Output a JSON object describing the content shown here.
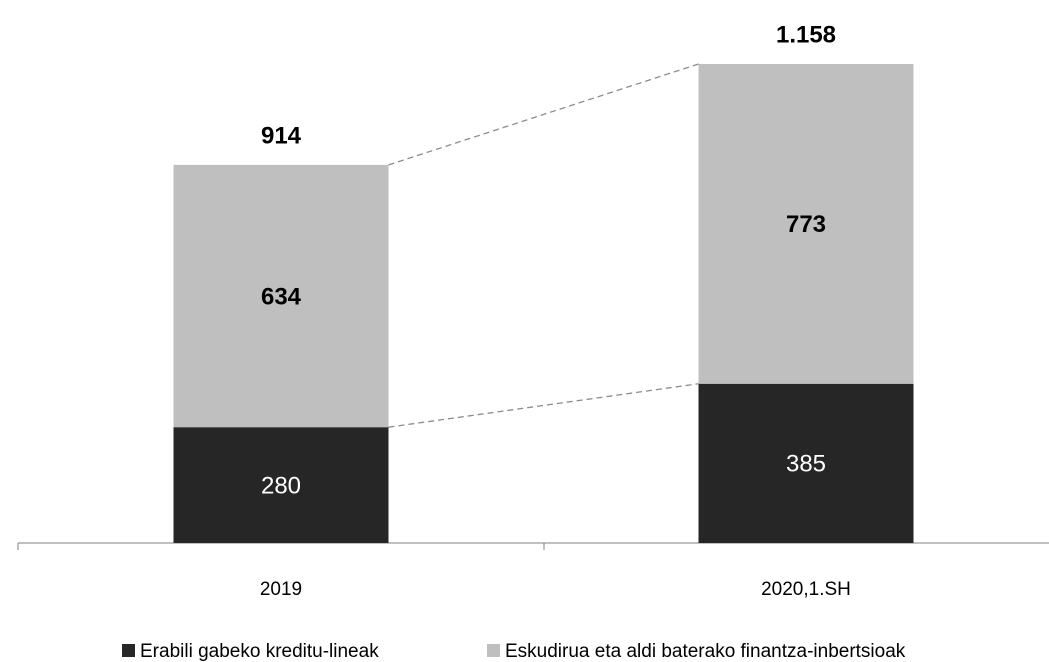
{
  "chart_data": {
    "type": "stacked-bar",
    "categories": [
      "2019",
      "2020,1.SH"
    ],
    "series": [
      {
        "name": "Erabili gabeko kreditu-lineak",
        "color": "#262626",
        "values": [
          280,
          385
        ]
      },
      {
        "name": "Eskudirua eta aldi baterako finantza-inbertsioak",
        "color": "#bfbfbf",
        "values": [
          634,
          773
        ]
      }
    ],
    "totals": {
      "values": [
        914,
        1158
      ],
      "value_labels": [
        "914",
        "1.158"
      ]
    }
  }
}
